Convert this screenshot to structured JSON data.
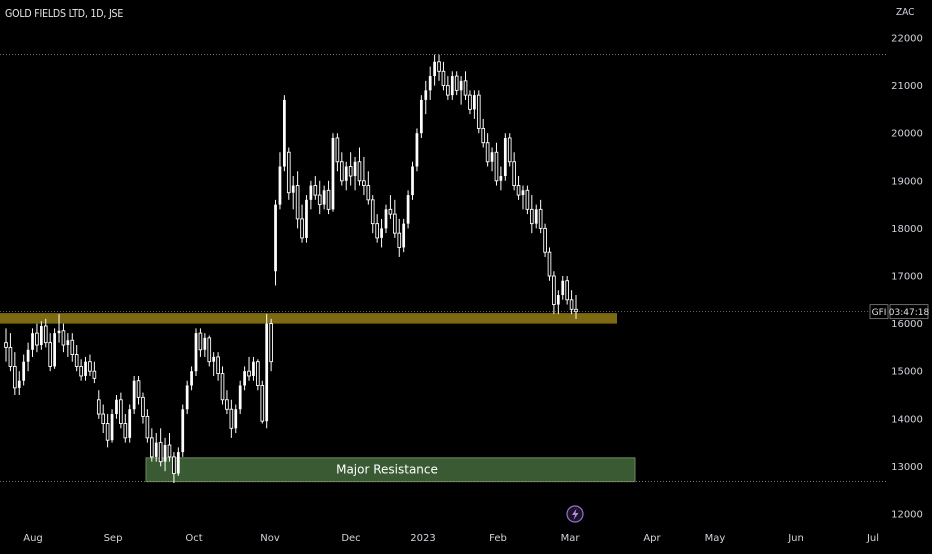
{
  "header": {
    "title": "GOLD FIELDS LTD, 1D, JSE",
    "currency": "ZAC"
  },
  "price_label": {
    "ticker": "GFI",
    "countdown": "03:47:18"
  },
  "zones": {
    "major_resistance_label": "Major Resistance"
  },
  "colors": {
    "background": "#000000",
    "candle_up": "#ffffff",
    "candle_down": "#ffffff",
    "support_zone": "#7c6a12",
    "resistance_zone": "#3a5a33",
    "resistance_border": "#6a8a5a",
    "axis_text": "#d1d4dc",
    "dotted_line": "#9a9a9a"
  },
  "chart_data": {
    "type": "candlestick",
    "title": "GOLD FIELDS LTD, 1D, JSE",
    "ylabel": "ZAC",
    "ylim": [
      11800,
      22600
    ],
    "y_ticks": [
      12000,
      13000,
      14000,
      15000,
      16000,
      17000,
      18000,
      19000,
      20000,
      21000,
      22000
    ],
    "x_ticks": [
      "Aug",
      "Sep",
      "Oct",
      "Nov",
      "Dec",
      "2023",
      "Feb",
      "Mar",
      "Apr",
      "May",
      "Jun",
      "Jul"
    ],
    "last_price": 16250,
    "reference_lines": {
      "high": 21650,
      "low": 12680
    },
    "zones": [
      {
        "name": "support",
        "from": 16000,
        "to": 16220
      },
      {
        "name": "Major Resistance",
        "from": 12680,
        "to": 13180
      }
    ],
    "candles": [
      [
        15600,
        15900,
        15200,
        15500
      ],
      [
        15500,
        15800,
        15000,
        15100
      ],
      [
        15100,
        15400,
        14500,
        14650
      ],
      [
        14650,
        15000,
        14500,
        14800
      ],
      [
        14800,
        15350,
        14700,
        15200
      ],
      [
        15200,
        15600,
        15000,
        15450
      ],
      [
        15450,
        15900,
        15300,
        15800
      ],
      [
        15800,
        16000,
        15400,
        15550
      ],
      [
        15550,
        16050,
        15450,
        15950
      ],
      [
        15950,
        16100,
        15500,
        15600
      ],
      [
        15600,
        15800,
        15000,
        15100
      ],
      [
        15100,
        15900,
        15050,
        15800
      ],
      [
        15800,
        16200,
        15600,
        15850
      ],
      [
        15850,
        16000,
        15400,
        15550
      ],
      [
        15550,
        15800,
        15300,
        15650
      ],
      [
        15650,
        15800,
        15200,
        15350
      ],
      [
        15350,
        15550,
        15000,
        15100
      ],
      [
        15100,
        15250,
        14800,
        14900
      ],
      [
        14900,
        15300,
        14800,
        15200
      ],
      [
        15200,
        15350,
        14900,
        15000
      ],
      [
        15000,
        15200,
        14750,
        14850
      ],
      [
        14400,
        14600,
        14000,
        14100
      ],
      [
        14100,
        14300,
        13700,
        13900
      ],
      [
        13900,
        14100,
        13400,
        13550
      ],
      [
        13550,
        14200,
        13500,
        14100
      ],
      [
        14100,
        14500,
        14000,
        14400
      ],
      [
        14400,
        14550,
        13800,
        13900
      ],
      [
        13900,
        14100,
        13500,
        13600
      ],
      [
        13600,
        14300,
        13500,
        14200
      ],
      [
        14200,
        14900,
        14100,
        14800
      ],
      [
        14800,
        14900,
        14300,
        14450
      ],
      [
        14450,
        14550,
        13900,
        14050
      ],
      [
        14050,
        14200,
        13500,
        13600
      ],
      [
        13600,
        13800,
        13100,
        13200
      ],
      [
        13200,
        13700,
        13100,
        13500
      ],
      [
        13500,
        13800,
        13000,
        13100
      ],
      [
        13100,
        13600,
        12900,
        13450
      ],
      [
        13450,
        13700,
        13100,
        13200
      ],
      [
        13200,
        13300,
        12650,
        12850
      ],
      [
        12850,
        13400,
        12800,
        13300
      ],
      [
        13300,
        14300,
        13200,
        14200
      ],
      [
        14200,
        14800,
        14100,
        14700
      ],
      [
        14700,
        15100,
        14600,
        15000
      ],
      [
        15000,
        15900,
        14900,
        15800
      ],
      [
        15800,
        15900,
        15300,
        15450
      ],
      [
        15450,
        15800,
        15300,
        15700
      ],
      [
        15700,
        15750,
        15100,
        15200
      ],
      [
        15200,
        15400,
        14900,
        15300
      ],
      [
        15300,
        15400,
        14800,
        14950
      ],
      [
        14950,
        15100,
        14300,
        14400
      ],
      [
        14400,
        14600,
        14100,
        14200
      ],
      [
        14200,
        14400,
        13600,
        13800
      ],
      [
        13800,
        14300,
        13700,
        14200
      ],
      [
        14200,
        14800,
        14100,
        14700
      ],
      [
        14700,
        15100,
        14600,
        15000
      ],
      [
        15000,
        15300,
        14800,
        14900
      ],
      [
        14900,
        15300,
        14800,
        15200
      ],
      [
        15200,
        15250,
        14600,
        14700
      ],
      [
        14700,
        14800,
        13900,
        13950
      ],
      [
        13950,
        16200,
        13800,
        16000
      ],
      [
        16000,
        16100,
        15000,
        15200
      ],
      [
        17100,
        18600,
        16800,
        18500
      ],
      [
        18500,
        19600,
        18400,
        19300
      ],
      [
        19300,
        20800,
        19200,
        20700
      ],
      [
        19600,
        19700,
        18600,
        18750
      ],
      [
        18750,
        19100,
        18400,
        18900
      ],
      [
        18900,
        19200,
        18000,
        18200
      ],
      [
        18200,
        18500,
        17700,
        17800
      ],
      [
        17800,
        18700,
        17700,
        18600
      ],
      [
        18600,
        19000,
        18400,
        18900
      ],
      [
        18900,
        19100,
        18600,
        18700
      ],
      [
        18700,
        19000,
        18300,
        18500
      ],
      [
        18500,
        18900,
        18400,
        18800
      ],
      [
        18800,
        19000,
        18300,
        18400
      ],
      [
        18400,
        20000,
        18350,
        19900
      ],
      [
        19900,
        20000,
        19200,
        19400
      ],
      [
        19400,
        19600,
        18900,
        19000
      ],
      [
        19000,
        19400,
        18800,
        19300
      ],
      [
        19300,
        19600,
        18900,
        19100
      ],
      [
        19100,
        19500,
        18800,
        19400
      ],
      [
        19400,
        19700,
        18900,
        19000
      ],
      [
        19000,
        19500,
        18700,
        18900
      ],
      [
        18900,
        19200,
        18500,
        18600
      ],
      [
        18600,
        18700,
        17900,
        18100
      ],
      [
        18100,
        18300,
        17700,
        17800
      ],
      [
        17800,
        18200,
        17600,
        18000
      ],
      [
        18000,
        18500,
        17900,
        18400
      ],
      [
        18400,
        18700,
        18200,
        18300
      ],
      [
        18300,
        18600,
        17800,
        17900
      ],
      [
        17900,
        18200,
        17400,
        17600
      ],
      [
        17600,
        18200,
        17500,
        18100
      ],
      [
        18100,
        18800,
        18000,
        18700
      ],
      [
        18700,
        19400,
        18600,
        19300
      ],
      [
        19300,
        20100,
        19200,
        20000
      ],
      [
        20000,
        20800,
        19900,
        20700
      ],
      [
        20700,
        21100,
        20400,
        20900
      ],
      [
        20900,
        21400,
        20700,
        21200
      ],
      [
        21200,
        21650,
        21000,
        21500
      ],
      [
        21500,
        21650,
        21100,
        21300
      ],
      [
        21300,
        21500,
        20900,
        21000
      ],
      [
        21000,
        21200,
        20700,
        20800
      ],
      [
        20800,
        21300,
        20700,
        21200
      ],
      [
        21200,
        21300,
        20800,
        20900
      ],
      [
        20900,
        21200,
        20600,
        21100
      ],
      [
        21100,
        21300,
        20700,
        20800
      ],
      [
        20800,
        20900,
        20400,
        20500
      ],
      [
        20500,
        20900,
        20300,
        20800
      ],
      [
        20800,
        20900,
        20000,
        20100
      ],
      [
        20100,
        20300,
        19700,
        19800
      ],
      [
        19800,
        20000,
        19300,
        19400
      ],
      [
        19400,
        19700,
        19200,
        19600
      ],
      [
        19600,
        19800,
        18900,
        19000
      ],
      [
        19000,
        19300,
        18800,
        19100
      ],
      [
        19100,
        20000,
        19000,
        19900
      ],
      [
        19900,
        20000,
        19300,
        19400
      ],
      [
        19400,
        19600,
        18800,
        18900
      ],
      [
        18900,
        19100,
        18600,
        18700
      ],
      [
        18700,
        18900,
        18400,
        18800
      ],
      [
        18800,
        18900,
        18300,
        18400
      ],
      [
        18400,
        18700,
        17900,
        18100
      ],
      [
        18100,
        18500,
        18000,
        18400
      ],
      [
        18400,
        18600,
        17900,
        18000
      ],
      [
        18000,
        18100,
        17400,
        17500
      ],
      [
        17500,
        17600,
        16900,
        17000
      ],
      [
        17000,
        17100,
        16200,
        16400
      ],
      [
        16400,
        16700,
        16200,
        16600
      ],
      [
        16600,
        17000,
        16500,
        16900
      ],
      [
        16900,
        17000,
        16400,
        16500
      ],
      [
        16500,
        16700,
        16200,
        16300
      ],
      [
        16300,
        16600,
        16100,
        16250
      ]
    ]
  }
}
